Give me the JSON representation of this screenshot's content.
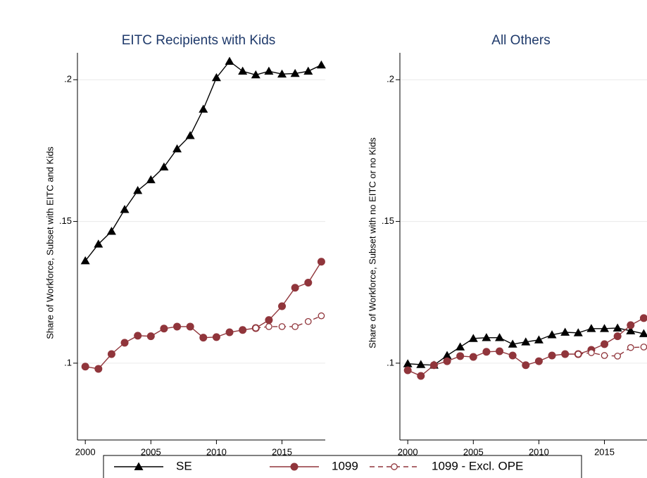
{
  "chart_data": [
    {
      "type": "line",
      "title": "EITC Recipients with Kids",
      "ylabel": "Share of Workforce, Subset with EITC and Kids",
      "x": [
        2000,
        2001,
        2002,
        2003,
        2004,
        2005,
        2006,
        2007,
        2008,
        2009,
        2010,
        2011,
        2012,
        2013,
        2014,
        2015,
        2016,
        2017,
        2018
      ],
      "xlim": [
        1999.4,
        2018.3
      ],
      "xticks": [
        2000,
        2005,
        2010,
        2015
      ],
      "ylim": [
        0.0729,
        0.2095
      ],
      "yticks": [
        {
          "value": 0.1,
          "label": ".1"
        },
        {
          "value": 0.15,
          "label": ".15"
        },
        {
          "value": 0.2,
          "label": ".2"
        }
      ],
      "grid": true,
      "series": [
        {
          "name": "SE",
          "color": "#000000",
          "marker": "triangle",
          "dashed": false,
          "values": [
            0.1361,
            0.142,
            0.1465,
            0.1542,
            0.1609,
            0.1647,
            0.1692,
            0.1756,
            0.1803,
            0.1896,
            0.2007,
            0.2065,
            0.203,
            0.2017,
            0.203,
            0.202,
            0.2022,
            0.203,
            0.2052
          ]
        },
        {
          "name": "1099",
          "color": "#90353b",
          "marker": "circle",
          "dashed": false,
          "values": [
            0.0988,
            0.098,
            0.1032,
            0.1072,
            0.1097,
            0.1095,
            0.1122,
            0.1129,
            0.1129,
            0.109,
            0.1092,
            0.1109,
            0.1117,
            0.1124,
            0.1152,
            0.1201,
            0.1266,
            0.1284,
            0.1358
          ]
        },
        {
          "name": "1099 - Excl. OPE",
          "color": "#90353b",
          "marker": "hollow-circle",
          "dashed": true,
          "values": [
            null,
            null,
            null,
            null,
            null,
            null,
            null,
            null,
            null,
            null,
            null,
            null,
            null,
            0.1124,
            0.1129,
            0.1129,
            0.1129,
            0.1147,
            0.1167
          ]
        }
      ]
    },
    {
      "type": "line",
      "title": "All Others",
      "ylabel": "Share of Workforce, Subset with no EITC or no Kids",
      "x": [
        2000,
        2001,
        2002,
        2003,
        2004,
        2005,
        2006,
        2007,
        2008,
        2009,
        2010,
        2011,
        2012,
        2013,
        2014,
        2015,
        2016,
        2017,
        2018
      ],
      "xlim": [
        1999.4,
        2018.3
      ],
      "xticks": [
        2000,
        2005,
        2010,
        2015
      ],
      "ylim": [
        0.0729,
        0.2095
      ],
      "yticks": [
        {
          "value": 0.1,
          "label": ".1"
        },
        {
          "value": 0.15,
          "label": ".15"
        },
        {
          "value": 0.2,
          "label": ".2"
        }
      ],
      "grid": true,
      "series": [
        {
          "color": "#000000",
          "marker": "triangle",
          "dashed": false,
          "values": [
            0.0998,
            0.0995,
            0.0993,
            0.1027,
            0.1057,
            0.1087,
            0.109,
            0.109,
            0.1067,
            0.1075,
            0.1082,
            0.11,
            0.1109,
            0.1107,
            0.1122,
            0.1122,
            0.1124,
            0.1114,
            0.1104
          ]
        },
        {
          "color": "#90353b",
          "marker": "circle",
          "dashed": false,
          "values": [
            0.0975,
            0.0955,
            0.0993,
            0.1007,
            0.1025,
            0.1022,
            0.104,
            0.1042,
            0.1027,
            0.0993,
            0.1007,
            0.1027,
            0.1032,
            0.1032,
            0.1047,
            0.1067,
            0.1095,
            0.1134,
            0.1159
          ]
        },
        {
          "color": "#90353b",
          "marker": "hollow-circle",
          "dashed": true,
          "values": [
            null,
            null,
            null,
            null,
            null,
            null,
            null,
            null,
            null,
            null,
            null,
            null,
            null,
            0.1032,
            0.1037,
            0.1027,
            0.1025,
            0.1055,
            0.1057
          ]
        }
      ]
    }
  ]
}
